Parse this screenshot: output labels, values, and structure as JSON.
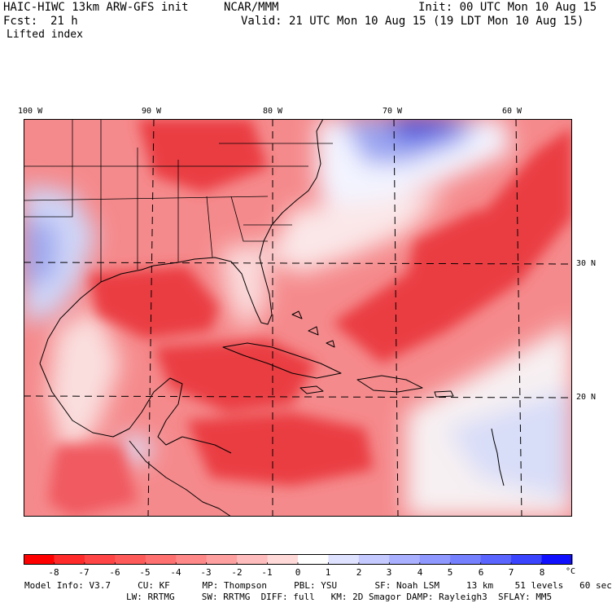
{
  "header": {
    "model_title": "HAIC-HIWC 13km ARW-GFS init",
    "center": "NCAR/MMM",
    "init": "Init: 00 UTC Mon 10 Aug 15",
    "fcst_label": "Fcst:",
    "fcst_value": "21 h",
    "valid": "Valid: 21 UTC Mon 10 Aug 15 (19 LDT Mon 10 Aug 15)",
    "field": "Lifted index"
  },
  "map": {
    "lon_labels": [
      "100 W",
      "90 W",
      "80 W",
      "70 W",
      "60 W"
    ],
    "lat_labels": [
      "30 N",
      "20 N"
    ],
    "colors": {
      "strong_negative": "#e8333a",
      "negative": "#f26b70",
      "weak_negative": "#f9b7b8",
      "neutral": "#ffffff",
      "weak_positive": "#ccd3f7",
      "positive": "#7b89ee",
      "strong_positive": "#2a3fe3",
      "border": "#000000"
    }
  },
  "colorbar": {
    "labels": [
      "-8",
      "-7",
      "-6",
      "-5",
      "-4",
      "-3",
      "-2",
      "-1",
      "0",
      "1",
      "2",
      "3",
      "4",
      "5",
      "6",
      "7",
      "8"
    ],
    "unit": "°C",
    "colors": [
      "#ff0000",
      "#ff2a2a",
      "#ff4545",
      "#ff5a5a",
      "#ff7070",
      "#ff8888",
      "#ffa0a0",
      "#ffbcbc",
      "#ffd8d8",
      "#ffffff",
      "#dfe2ff",
      "#c4caff",
      "#a9b0ff",
      "#8f98ff",
      "#7580ff",
      "#5a64ff",
      "#3a44ff",
      "#1010ff"
    ]
  },
  "model_info": {
    "line1": "Model Info: V3.7     CU: KF      MP: Thompson     PBL: YSU       SF: Noah LSM     13 km    51 levels   60 sec",
    "line2": "LW: RRTMG     SW: RRTMG  DIFF: full   KM: 2D Smagor DAMP: Rayleigh3  SFLAY: MM5"
  }
}
